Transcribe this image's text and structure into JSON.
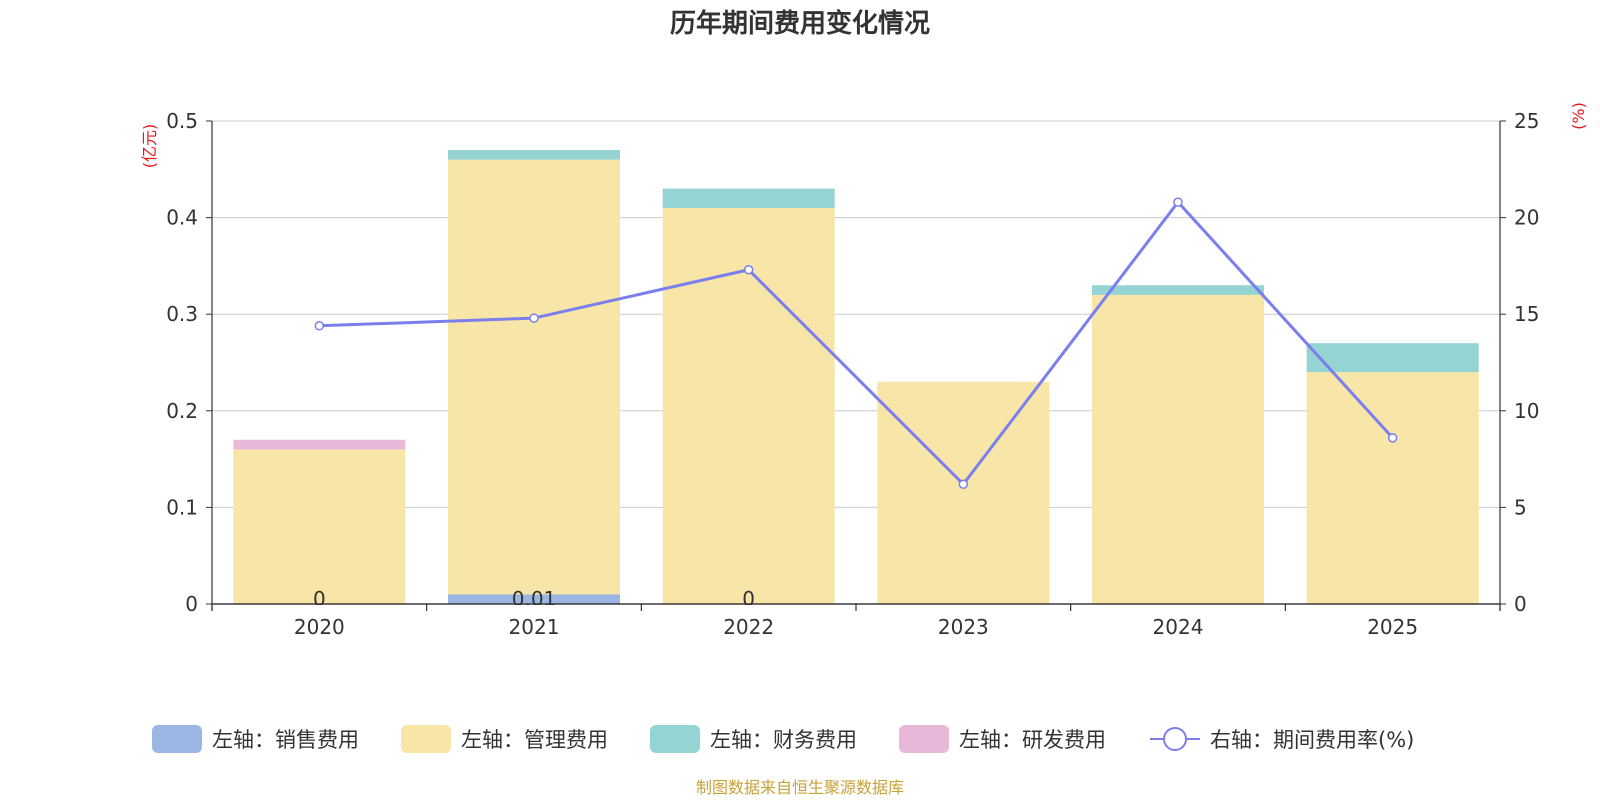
{
  "chart_data": {
    "type": "bar",
    "stacked": true,
    "title": "历年期间费用变化情况",
    "categories": [
      "2020",
      "2021",
      "2022",
      "2023",
      "2024",
      "2025"
    ],
    "left_axis": {
      "unit": "(亿元)",
      "ylim": [
        0,
        0.5
      ],
      "ticks": [
        "0",
        "0.1",
        "0.2",
        "0.3",
        "0.4",
        "0.5"
      ]
    },
    "right_axis": {
      "unit": "(%)",
      "ylim": [
        0,
        25
      ],
      "ticks": [
        "0",
        "5",
        "10",
        "15",
        "20",
        "25"
      ]
    },
    "series": [
      {
        "name": "左轴：销售费用",
        "type": "bar",
        "axis": "left",
        "color": "#9bb6e3",
        "values": [
          0,
          0.01,
          0,
          0,
          0,
          0
        ]
      },
      {
        "name": "左轴：管理费用",
        "type": "bar",
        "axis": "left",
        "color": "#f7e6a7",
        "values": [
          0.16,
          0.45,
          0.41,
          0.23,
          0.32,
          0.24
        ]
      },
      {
        "name": "左轴：财务费用",
        "type": "bar",
        "axis": "left",
        "color": "#96d4d4",
        "values": [
          0,
          0.01,
          0.02,
          0,
          0.01,
          0.03
        ]
      },
      {
        "name": "左轴：研发费用",
        "type": "bar",
        "axis": "left",
        "color": "#e8b8d9",
        "values": [
          0.01,
          0,
          0,
          0,
          0,
          0
        ]
      },
      {
        "name": "右轴：期间费用率(%)",
        "type": "line",
        "axis": "right",
        "color": "#7b7fee",
        "values": [
          14.4,
          14.8,
          17.3,
          6.2,
          20.8,
          8.6
        ]
      }
    ],
    "data_labels": [
      {
        "series": "左轴：销售费用",
        "category": "2020",
        "text": "0"
      },
      {
        "series": "左轴：销售费用",
        "category": "2021",
        "text": "0.01"
      },
      {
        "series": "左轴：销售费用",
        "category": "2022",
        "text": "0"
      }
    ]
  },
  "source": "制图数据来自恒生聚源数据库",
  "colors": {
    "unit_red": "#e8161b",
    "source_gold": "#c8a23a",
    "grid": "#cccccc",
    "axis": "#333333"
  }
}
